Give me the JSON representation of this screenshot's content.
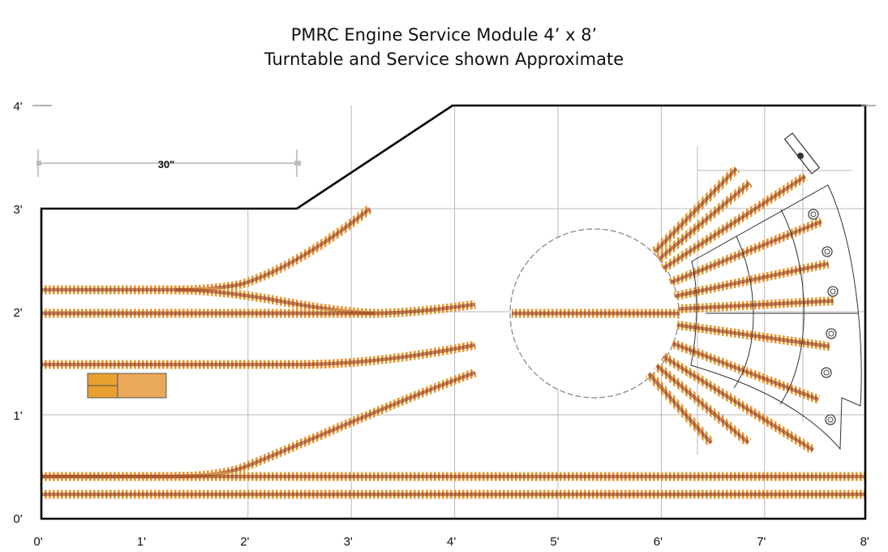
{
  "title_line1": "PMRC Engine Service Module 4’ x 8’",
  "title_line2": "Turntable and Service shown Approximate",
  "dimension_label": "30\"",
  "x_axis_labels": [
    "0'",
    "1'",
    "2'",
    "3'",
    "4'",
    "5'",
    "6'",
    "7'",
    "8'"
  ],
  "y_axis_labels": [
    "0'",
    "1'",
    "2'",
    "3'",
    "4'"
  ],
  "colors": {
    "tie": "#e8962a",
    "rail": "#8b2e10",
    "outline": "#000000",
    "grid": "#b8b8b8",
    "structure": "#e8a030",
    "structure_alt": "#e9a85a"
  }
}
